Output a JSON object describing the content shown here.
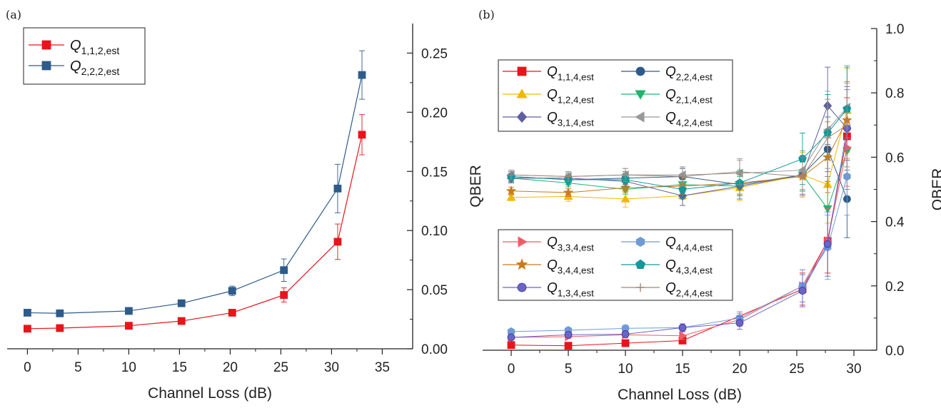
{
  "chart_data": [
    {
      "panel_label": "(a)",
      "type": "line",
      "xlabel": "Channel Loss (dB)",
      "ylabel": "QBER",
      "xlim": [
        -2,
        38
      ],
      "ylim": [
        0,
        0.275
      ],
      "xticks": [
        0,
        5,
        10,
        15,
        20,
        25,
        30,
        35
      ],
      "yticks": [
        0.0,
        0.05,
        0.1,
        0.15,
        0.2,
        0.25
      ],
      "ytick_labels": [
        "0.00",
        "0.05",
        "0.10",
        "0.15",
        "0.20",
        "0.25"
      ],
      "yaxis_side": "right",
      "legend_position": "top-left",
      "series": [
        {
          "name": "Q",
          "subscript": "1,1,2,est",
          "color": "#e8141b",
          "marker": "square",
          "x": [
            0,
            3.2,
            10,
            15.2,
            20.2,
            25.3,
            30.6,
            33
          ],
          "y": [
            0.017,
            0.0175,
            0.0195,
            0.0235,
            0.0305,
            0.0455,
            0.0905,
            0.181
          ],
          "err": [
            0,
            0,
            0,
            0.0015,
            0.002,
            0.006,
            0.015,
            0.017
          ]
        },
        {
          "name": "Q",
          "subscript": "2,2,2,est",
          "color": "#2e5b8a",
          "marker": "square",
          "x": [
            0,
            3.2,
            10,
            15.2,
            20.2,
            25.3,
            30.6,
            33
          ],
          "y": [
            0.0305,
            0.03,
            0.032,
            0.0385,
            0.049,
            0.0665,
            0.1355,
            0.2315
          ],
          "err": [
            0,
            0,
            0.0015,
            0.0015,
            0.004,
            0.0095,
            0.0205,
            0.0205
          ]
        }
      ]
    },
    {
      "panel_label": "(b)",
      "type": "line",
      "xlabel": "Channel Loss (dB)",
      "ylabel": "QBER",
      "xlim": [
        -2.5,
        32
      ],
      "ylim": [
        0,
        1.0
      ],
      "xticks": [
        0,
        5,
        10,
        15,
        20,
        25,
        30
      ],
      "yticks": [
        0.0,
        0.2,
        0.4,
        0.6,
        0.8,
        1.0
      ],
      "ytick_labels": [
        "0.0",
        "0.2",
        "0.4",
        "0.6",
        "0.8",
        "1.0"
      ],
      "yaxis_side": "right",
      "legend_position": "top-left (upper group) and center-left (lower group)",
      "series": [
        {
          "name": "Q",
          "subscript": "1,1,4,est",
          "color": "#e8141b",
          "marker": "square",
          "legend_group": 1,
          "x": [
            0,
            5,
            10,
            15,
            25.5,
            27.7,
            29.4
          ],
          "y": [
            0.016,
            0.014,
            0.022,
            0.03,
            0.19,
            0.34,
            0.665
          ],
          "err": [
            0,
            0,
            0.005,
            0.006,
            0.05,
            0.1,
            0.12
          ]
        },
        {
          "name": "Q",
          "subscript": "2,2,4,est",
          "color": "#2e5b8a",
          "marker": "circle",
          "legend_group": 1,
          "x": [
            0,
            5,
            10,
            15,
            20,
            25.5,
            27.7,
            29.4
          ],
          "y": [
            0.54,
            0.53,
            0.535,
            0.54,
            0.515,
            0.545,
            0.625,
            0.47
          ],
          "err": [
            0.015,
            0.015,
            0.02,
            0.025,
            0.03,
            0.05,
            0.1,
            0.12
          ]
        },
        {
          "name": "Q",
          "subscript": "1,2,4,est",
          "color": "#f0b800",
          "marker": "triangle-up",
          "legend_group": 1,
          "x": [
            0,
            5,
            10,
            15,
            20,
            25.5,
            27.7,
            29.4
          ],
          "y": [
            0.475,
            0.478,
            0.47,
            0.48,
            0.505,
            0.545,
            0.515,
            0.745
          ],
          "err": [
            0.01,
            0.015,
            0.025,
            0.03,
            0.04,
            0.07,
            0.12,
            0.13
          ]
        },
        {
          "name": "Q",
          "subscript": "2,1,4,est",
          "color": "#1fb46e",
          "marker": "triangle-down",
          "legend_group": 1,
          "x": [
            0,
            5,
            10,
            15,
            20,
            25.5,
            27.7,
            29.4
          ],
          "y": [
            0.535,
            0.52,
            0.5,
            0.515,
            0.51,
            0.545,
            0.44,
            0.62
          ],
          "err": [
            0.012,
            0.012,
            0.015,
            0.02,
            0.03,
            0.05,
            0.1,
            0.12
          ]
        },
        {
          "name": "Q",
          "subscript": "3,1,4,est",
          "color": "#5f5f9f",
          "marker": "diamond",
          "legend_group": 1,
          "x": [
            0,
            5,
            10,
            15,
            20,
            25.5,
            27.7,
            29.4
          ],
          "y": [
            0.535,
            0.535,
            0.525,
            0.48,
            0.51,
            0.545,
            0.76,
            0.69
          ],
          "err": [
            0.015,
            0.015,
            0.02,
            0.03,
            0.04,
            0.06,
            0.12,
            0.13
          ]
        },
        {
          "name": "Q",
          "subscript": "4,2,4,est",
          "color": "#999999",
          "marker": "triangle-left",
          "legend_group": 1,
          "x": [
            0,
            5,
            10,
            15,
            20,
            25.5,
            27.7,
            29.4
          ],
          "y": [
            0.545,
            0.54,
            0.545,
            0.545,
            0.55,
            0.56,
            0.685,
            0.755
          ],
          "err": [
            0.015,
            0.015,
            0.02,
            0.025,
            0.04,
            0.06,
            0.12,
            0.13
          ]
        },
        {
          "name": "Q",
          "subscript": "3,3,4,est",
          "color": "#f35a68",
          "marker": "triangle-right",
          "legend_group": 2,
          "x": [
            0,
            5,
            10,
            15,
            20,
            25.5,
            27.7,
            29.4
          ],
          "y": [
            0.04,
            0.042,
            0.048,
            0.045,
            0.095,
            0.2,
            0.34,
            0.63
          ],
          "err": [
            0.006,
            0.006,
            0.01,
            0.012,
            0.02,
            0.05,
            0.1,
            0.12
          ]
        },
        {
          "name": "Q",
          "subscript": "4,4,4,est",
          "color": "#6f9ad6",
          "marker": "hexagon",
          "legend_group": 2,
          "x": [
            0,
            5,
            10,
            15,
            20,
            25.5,
            27.7,
            29.4
          ],
          "y": [
            0.058,
            0.062,
            0.068,
            0.07,
            0.1,
            0.2,
            0.32,
            0.54
          ],
          "err": [
            0.006,
            0.008,
            0.01,
            0.012,
            0.02,
            0.05,
            0.1,
            0.12
          ]
        },
        {
          "name": "Q",
          "subscript": "3,4,4,est",
          "color": "#c87c1e",
          "marker": "star",
          "legend_group": 2,
          "x": [
            0,
            5,
            10,
            15,
            20,
            25.5,
            27.7,
            29.4
          ],
          "y": [
            0.495,
            0.49,
            0.505,
            0.51,
            0.52,
            0.54,
            0.6,
            0.715
          ],
          "err": [
            0.012,
            0.012,
            0.015,
            0.025,
            0.035,
            0.06,
            0.11,
            0.12
          ]
        },
        {
          "name": "Q",
          "subscript": "4,3,4,est",
          "color": "#14989b",
          "marker": "pentagon",
          "legend_group": 2,
          "x": [
            0,
            5,
            10,
            15,
            20,
            25.5,
            27.7,
            29.4
          ],
          "y": [
            0.54,
            0.53,
            0.53,
            0.5,
            0.52,
            0.595,
            0.675,
            0.75
          ],
          "err": [
            0.015,
            0.015,
            0.02,
            0.03,
            0.04,
            0.08,
            0.12,
            0.13
          ]
        },
        {
          "name": "Q",
          "subscript": "1,3,4,est",
          "color": "#6a64c8",
          "marker": "sphere",
          "legend_group": 2,
          "x": [
            0,
            5,
            10,
            15,
            20,
            25.5,
            27.7,
            29.4
          ],
          "y": [
            0.04,
            0.048,
            0.05,
            0.07,
            0.085,
            0.185,
            0.33,
            0.69
          ],
          "err": [
            0.006,
            0.008,
            0.01,
            0.012,
            0.02,
            0.05,
            0.1,
            0.12
          ]
        },
        {
          "name": "Q",
          "subscript": "2,4,4,est",
          "color": "#a08878",
          "marker": "plus",
          "legend_group": 2,
          "x": [
            0,
            5,
            10,
            15,
            20,
            25.5,
            27.7,
            29.4
          ],
          "y": [
            0.545,
            0.54,
            0.545,
            0.54,
            0.555,
            0.54,
            0.66,
            0.7
          ],
          "err": [
            0.015,
            0.015,
            0.02,
            0.03,
            0.04,
            0.06,
            0.12,
            0.13
          ]
        }
      ]
    }
  ]
}
